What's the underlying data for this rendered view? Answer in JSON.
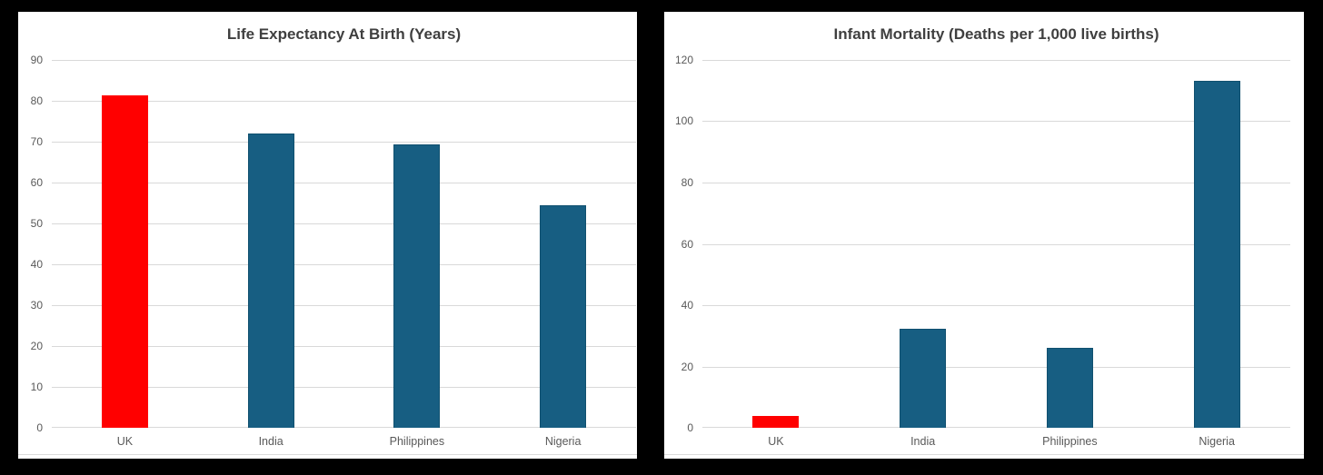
{
  "chart_data": [
    {
      "type": "bar",
      "title": "Life Expectancy At Birth (Years)",
      "categories": [
        "UK",
        "India",
        "Philippines",
        "Nigeria"
      ],
      "values": [
        81.3,
        72,
        69.3,
        54.4
      ],
      "yticks": [
        0,
        10,
        20,
        30,
        40,
        50,
        60,
        70,
        80,
        90
      ],
      "ylim": [
        0,
        90
      ],
      "xlabel": "",
      "ylabel": "",
      "grid": true,
      "legend": false,
      "bar_colors": [
        "#FF0000",
        "#175E82",
        "#175E82",
        "#175E82"
      ],
      "bar_border_colors": [
        "#FF0000",
        "#10506F",
        "#10506F",
        "#10506F"
      ]
    },
    {
      "type": "bar",
      "title": "Infant Mortality (Deaths per 1,000 live births)",
      "categories": [
        "UK",
        "India",
        "Philippines",
        "Nigeria"
      ],
      "values": [
        4,
        32.3,
        26.2,
        113.3
      ],
      "yticks": [
        0,
        20,
        40,
        60,
        80,
        100,
        120
      ],
      "ylim": [
        0,
        120
      ],
      "xlabel": "",
      "ylabel": "",
      "grid": true,
      "legend": false,
      "bar_colors": [
        "#FF0000",
        "#175E82",
        "#175E82",
        "#175E82"
      ],
      "bar_border_colors": [
        "#FF0000",
        "#10506F",
        "#10506F",
        "#10506F"
      ]
    }
  ],
  "colors": {
    "page_background": "#000000",
    "panel_background": "#FFFFFF",
    "highlight_bar": "#FF0000",
    "default_bar": "#175E82",
    "gridline": "#D9D9D9",
    "tick_label": "#595959",
    "title_text": "#3F3F3F"
  }
}
